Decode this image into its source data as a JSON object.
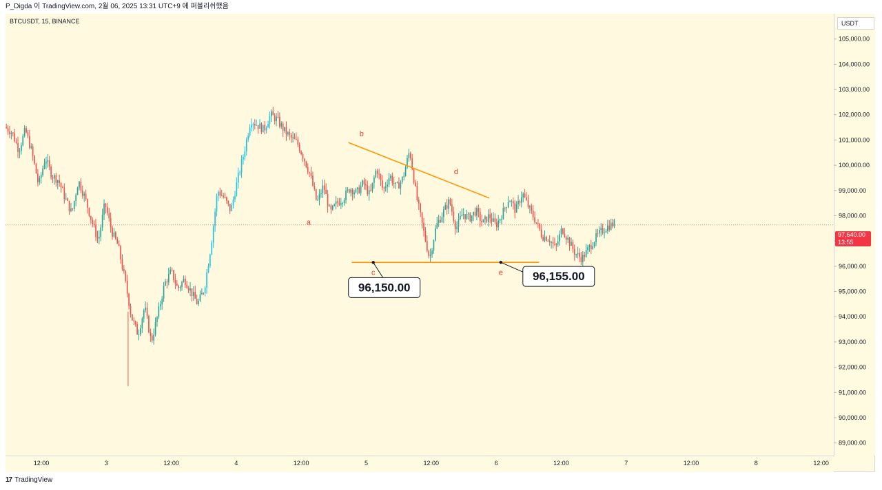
{
  "header": {
    "text": "P_Digda 이 TradingView.com, 2월 06, 2025 13:31 UTC+9 에 퍼블리쉬했음"
  },
  "symbol": {
    "label": "BTCUSDT, 15, BINANCE"
  },
  "currency": "USDT",
  "last_price": {
    "price": "97,640.00",
    "countdown": "13:55",
    "color": "#f23645"
  },
  "footer": {
    "logo": "17",
    "brand": "TradingView"
  },
  "colors": {
    "up": "#26a69a",
    "up_bright": "#22c4e0",
    "down": "#ef5350",
    "pattern_line": "#ff9800",
    "label_text": "#e53935",
    "background": "#fef9df"
  },
  "chart_data": {
    "type": "candlestick",
    "symbol": "BTCUSDT",
    "interval": "15",
    "exchange": "BINANCE",
    "y_ticks": [
      "89,000.00",
      "90,000.00",
      "91,000.00",
      "92,000.00",
      "93,000.00",
      "94,000.00",
      "95,000.00",
      "96,000.00",
      "97,000.00",
      "98,000.00",
      "99,000.00",
      "100,000.00",
      "101,000.00",
      "102,000.00",
      "103,000.00",
      "104,000.00",
      "105,000.00"
    ],
    "ylim": [
      88500,
      106000
    ],
    "x_ticks": [
      "12:00",
      "3",
      "12:00",
      "4",
      "12:00",
      "5",
      "12:00",
      "6",
      "12:00",
      "7",
      "12:00",
      "8",
      "12:00"
    ],
    "price_path": [
      [
        0,
        101500
      ],
      [
        4,
        101300
      ],
      [
        8,
        100600
      ],
      [
        12,
        101400
      ],
      [
        16,
        100500
      ],
      [
        20,
        99200
      ],
      [
        24,
        100300
      ],
      [
        28,
        99600
      ],
      [
        32,
        99400
      ],
      [
        36,
        98700
      ],
      [
        40,
        98100
      ],
      [
        44,
        99400
      ],
      [
        48,
        98700
      ],
      [
        52,
        97800
      ],
      [
        56,
        97000
      ],
      [
        60,
        98500
      ],
      [
        64,
        97400
      ],
      [
        68,
        96800
      ],
      [
        72,
        95500
      ],
      [
        76,
        94000
      ],
      [
        80,
        93300
      ],
      [
        84,
        94400
      ],
      [
        88,
        93000
      ],
      [
        92,
        94100
      ],
      [
        96,
        95300
      ],
      [
        100,
        95800
      ],
      [
        104,
        95100
      ],
      [
        108,
        95500
      ],
      [
        112,
        95000
      ],
      [
        116,
        94500
      ],
      [
        120,
        95100
      ],
      [
        124,
        96800
      ],
      [
        128,
        99000
      ],
      [
        132,
        98700
      ],
      [
        136,
        98200
      ],
      [
        140,
        99400
      ],
      [
        144,
        100500
      ],
      [
        148,
        101800
      ],
      [
        152,
        101600
      ],
      [
        156,
        101400
      ],
      [
        160,
        102000
      ],
      [
        164,
        101800
      ],
      [
        168,
        101400
      ],
      [
        172,
        101100
      ],
      [
        176,
        100900
      ],
      [
        180,
        100300
      ],
      [
        184,
        99600
      ],
      [
        188,
        98500
      ],
      [
        192,
        99200
      ],
      [
        196,
        98100
      ],
      [
        200,
        98500
      ],
      [
        204,
        98700
      ],
      [
        208,
        99100
      ],
      [
        212,
        98900
      ],
      [
        216,
        99300
      ],
      [
        220,
        98800
      ],
      [
        224,
        99900
      ],
      [
        228,
        99000
      ],
      [
        232,
        99600
      ],
      [
        236,
        99100
      ],
      [
        240,
        99500
      ],
      [
        244,
        100600
      ],
      [
        248,
        98800
      ],
      [
        252,
        97500
      ],
      [
        256,
        96300
      ],
      [
        260,
        97600
      ],
      [
        264,
        98100
      ],
      [
        268,
        98600
      ],
      [
        272,
        97500
      ],
      [
        276,
        98100
      ],
      [
        280,
        97900
      ],
      [
        284,
        98200
      ],
      [
        288,
        97700
      ],
      [
        292,
        98000
      ],
      [
        296,
        97600
      ],
      [
        300,
        98100
      ],
      [
        304,
        98700
      ],
      [
        308,
        98200
      ],
      [
        312,
        98900
      ],
      [
        316,
        98300
      ],
      [
        320,
        97800
      ],
      [
        324,
        97200
      ],
      [
        328,
        97100
      ],
      [
        332,
        96700
      ],
      [
        336,
        97500
      ],
      [
        340,
        97000
      ],
      [
        344,
        96500
      ],
      [
        348,
        96300
      ],
      [
        352,
        96700
      ],
      [
        356,
        97100
      ],
      [
        360,
        97400
      ],
      [
        364,
        97600
      ],
      [
        368,
        97700
      ]
    ],
    "x_domain": [
      0,
      500
    ],
    "annotations": {
      "wave_labels": [
        {
          "text": "a",
          "x": 183,
          "y": 97650
        },
        {
          "text": "b",
          "x": 215,
          "y": 101150
        },
        {
          "text": "c",
          "x": 222,
          "y": 95650
        },
        {
          "text": "d",
          "x": 272,
          "y": 99650
        },
        {
          "text": "e",
          "x": 299,
          "y": 95650
        }
      ],
      "trendlines": [
        {
          "name": "upper",
          "from": [
            207,
            100900
          ],
          "to": [
            292,
            98700
          ]
        },
        {
          "name": "lower",
          "from": [
            209,
            96150
          ],
          "to": [
            322,
            96155
          ]
        }
      ],
      "price_callouts": [
        {
          "text": "96,150.00",
          "anchor": [
            222,
            96150
          ]
        },
        {
          "text": "96,155.00",
          "anchor": [
            299,
            96155
          ]
        }
      ],
      "last_price_line": 97640
    }
  }
}
